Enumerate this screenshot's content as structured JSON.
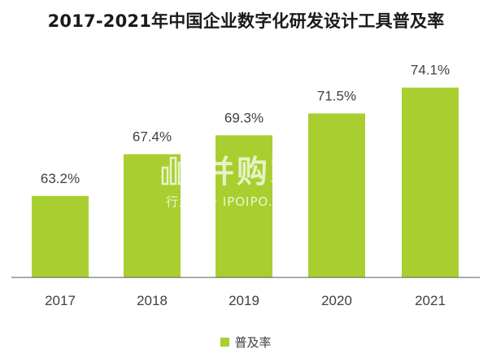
{
  "title": "2017-2021年中国企业数字化研发设计工具普及率",
  "colors": {
    "bar": "#a8cf2f",
    "axis": "#595959",
    "text": "#404040"
  },
  "chart_data": {
    "type": "bar",
    "title": "2017-2021年中国企业数字化研发设计工具普及率",
    "categories": [
      "2017",
      "2018",
      "2019",
      "2020",
      "2021"
    ],
    "series": [
      {
        "name": "普及率",
        "values": [
          63.2,
          67.4,
          69.3,
          71.5,
          74.1
        ],
        "labels": [
          "63.2%",
          "67.4%",
          "69.3%",
          "71.5%",
          "74.1%"
        ]
      }
    ],
    "ylim": [
      55,
      78
    ],
    "grid": false,
    "legend_position": "bottom"
  },
  "legend": {
    "label": "普及率"
  },
  "watermark": {
    "brand": "并购家",
    "sub": "行业报告 IPOIPO.CN"
  }
}
